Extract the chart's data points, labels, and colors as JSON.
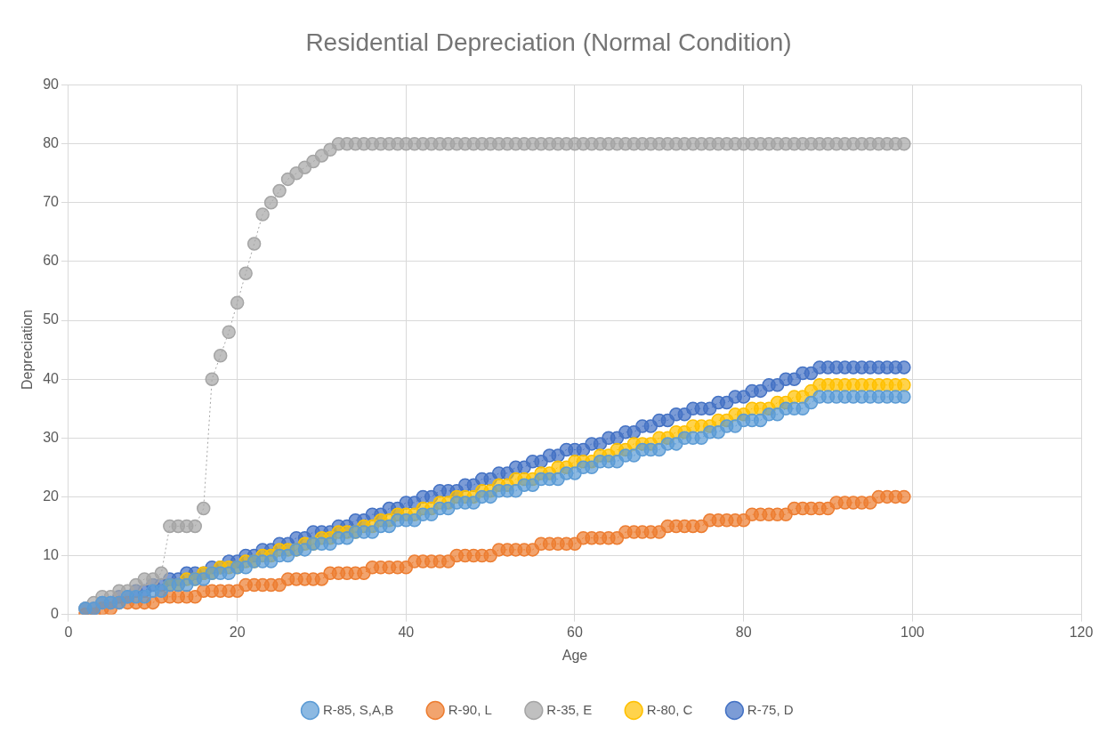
{
  "chart_data": {
    "type": "line",
    "title": "Residential Depreciation (Normal Condition)",
    "xlabel": "Age",
    "ylabel": "Depreciation",
    "x": [
      2,
      3,
      4,
      5,
      6,
      7,
      8,
      9,
      10,
      11,
      12,
      13,
      14,
      15,
      16,
      17,
      18,
      19,
      20,
      21,
      22,
      23,
      24,
      25,
      26,
      27,
      28,
      29,
      30,
      31,
      32,
      33,
      34,
      35,
      36,
      37,
      38,
      39,
      40,
      41,
      42,
      43,
      44,
      45,
      46,
      47,
      48,
      49,
      50,
      51,
      52,
      53,
      54,
      55,
      56,
      57,
      58,
      59,
      60,
      61,
      62,
      63,
      64,
      65,
      66,
      67,
      68,
      69,
      70,
      71,
      72,
      73,
      74,
      75,
      76,
      77,
      78,
      79,
      80,
      81,
      82,
      83,
      84,
      85,
      86,
      87,
      88,
      89,
      90,
      91,
      92,
      93,
      94,
      95,
      96,
      97,
      98,
      99
    ],
    "series": [
      {
        "name": "R-85, S,A,B",
        "color": "#5b9bd5",
        "values": [
          1,
          1,
          2,
          2,
          2,
          3,
          3,
          3,
          4,
          4,
          5,
          5,
          5,
          6,
          6,
          7,
          7,
          7,
          8,
          8,
          9,
          9,
          9,
          10,
          10,
          11,
          11,
          12,
          12,
          12,
          13,
          13,
          14,
          14,
          14,
          15,
          15,
          16,
          16,
          16,
          17,
          17,
          18,
          18,
          19,
          19,
          19,
          20,
          20,
          21,
          21,
          21,
          22,
          22,
          23,
          23,
          23,
          24,
          24,
          25,
          25,
          26,
          26,
          26,
          27,
          27,
          28,
          28,
          28,
          29,
          29,
          30,
          30,
          30,
          31,
          31,
          32,
          32,
          33,
          33,
          33,
          34,
          34,
          35,
          35,
          35,
          36,
          37,
          37,
          37,
          37,
          37,
          37,
          37,
          37,
          37,
          37,
          37
        ]
      },
      {
        "name": "R-90, L",
        "color": "#ed7d31",
        "values": [
          0,
          0,
          1,
          1,
          2,
          2,
          2,
          2,
          2,
          3,
          3,
          3,
          3,
          3,
          4,
          4,
          4,
          4,
          4,
          5,
          5,
          5,
          5,
          5,
          6,
          6,
          6,
          6,
          6,
          7,
          7,
          7,
          7,
          7,
          8,
          8,
          8,
          8,
          8,
          9,
          9,
          9,
          9,
          9,
          10,
          10,
          10,
          10,
          10,
          11,
          11,
          11,
          11,
          11,
          12,
          12,
          12,
          12,
          12,
          13,
          13,
          13,
          13,
          13,
          14,
          14,
          14,
          14,
          14,
          15,
          15,
          15,
          15,
          15,
          16,
          16,
          16,
          16,
          16,
          17,
          17,
          17,
          17,
          17,
          18,
          18,
          18,
          18,
          18,
          19,
          19,
          19,
          19,
          19,
          20,
          20,
          20,
          20
        ]
      },
      {
        "name": "R-35, E",
        "color": "#a5a5a5",
        "values": [
          1,
          2,
          3,
          3,
          4,
          4,
          5,
          6,
          6,
          7,
          15,
          15,
          15,
          15,
          18,
          40,
          44,
          48,
          53,
          58,
          63,
          68,
          70,
          72,
          74,
          75,
          76,
          77,
          78,
          79,
          80,
          80,
          80,
          80,
          80,
          80,
          80,
          80,
          80,
          80,
          80,
          80,
          80,
          80,
          80,
          80,
          80,
          80,
          80,
          80,
          80,
          80,
          80,
          80,
          80,
          80,
          80,
          80,
          80,
          80,
          80,
          80,
          80,
          80,
          80,
          80,
          80,
          80,
          80,
          80,
          80,
          80,
          80,
          80,
          80,
          80,
          80,
          80,
          80,
          80,
          80,
          80,
          80,
          80,
          80,
          80,
          80,
          80,
          80,
          80,
          80,
          80,
          80,
          80,
          80,
          80,
          80,
          80
        ]
      },
      {
        "name": "R-80, C",
        "color": "#ffc000",
        "values": [
          null,
          null,
          null,
          null,
          null,
          null,
          null,
          null,
          null,
          null,
          5,
          5,
          6,
          6,
          7,
          7,
          8,
          8,
          8,
          9,
          9,
          10,
          10,
          11,
          11,
          11,
          12,
          12,
          13,
          13,
          14,
          14,
          14,
          15,
          15,
          16,
          16,
          17,
          17,
          17,
          18,
          18,
          19,
          19,
          20,
          20,
          20,
          21,
          21,
          22,
          22,
          23,
          23,
          23,
          24,
          24,
          25,
          25,
          26,
          26,
          26,
          27,
          27,
          28,
          28,
          29,
          29,
          29,
          30,
          30,
          31,
          31,
          32,
          32,
          32,
          33,
          33,
          34,
          34,
          35,
          35,
          35,
          36,
          36,
          37,
          37,
          38,
          39,
          39,
          39,
          39,
          39,
          39,
          39,
          39,
          39,
          39,
          39
        ]
      },
      {
        "name": "R-75, D",
        "color": "#4472c4",
        "values": [
          1,
          1,
          2,
          2,
          3,
          3,
          4,
          4,
          5,
          5,
          6,
          6,
          7,
          7,
          7,
          8,
          8,
          9,
          9,
          10,
          10,
          11,
          11,
          12,
          12,
          13,
          13,
          14,
          14,
          14,
          15,
          15,
          16,
          16,
          17,
          17,
          18,
          18,
          19,
          19,
          20,
          20,
          21,
          21,
          21,
          22,
          22,
          23,
          23,
          24,
          24,
          25,
          25,
          26,
          26,
          27,
          27,
          28,
          28,
          28,
          29,
          29,
          30,
          30,
          31,
          31,
          32,
          32,
          33,
          33,
          34,
          34,
          35,
          35,
          35,
          36,
          36,
          37,
          37,
          38,
          38,
          39,
          39,
          40,
          40,
          41,
          41,
          42,
          42,
          42,
          42,
          42,
          42,
          42,
          42,
          42,
          42,
          42
        ]
      }
    ],
    "xlim": [
      0,
      120
    ],
    "xticks": [
      0,
      20,
      40,
      60,
      80,
      100,
      120
    ],
    "ylim": [
      0,
      90
    ],
    "yticks": [
      0,
      10,
      20,
      30,
      40,
      50,
      60,
      70,
      80,
      90
    ],
    "grid": true,
    "legend": "bottom",
    "marker": "circle",
    "line_style": "dotted"
  }
}
